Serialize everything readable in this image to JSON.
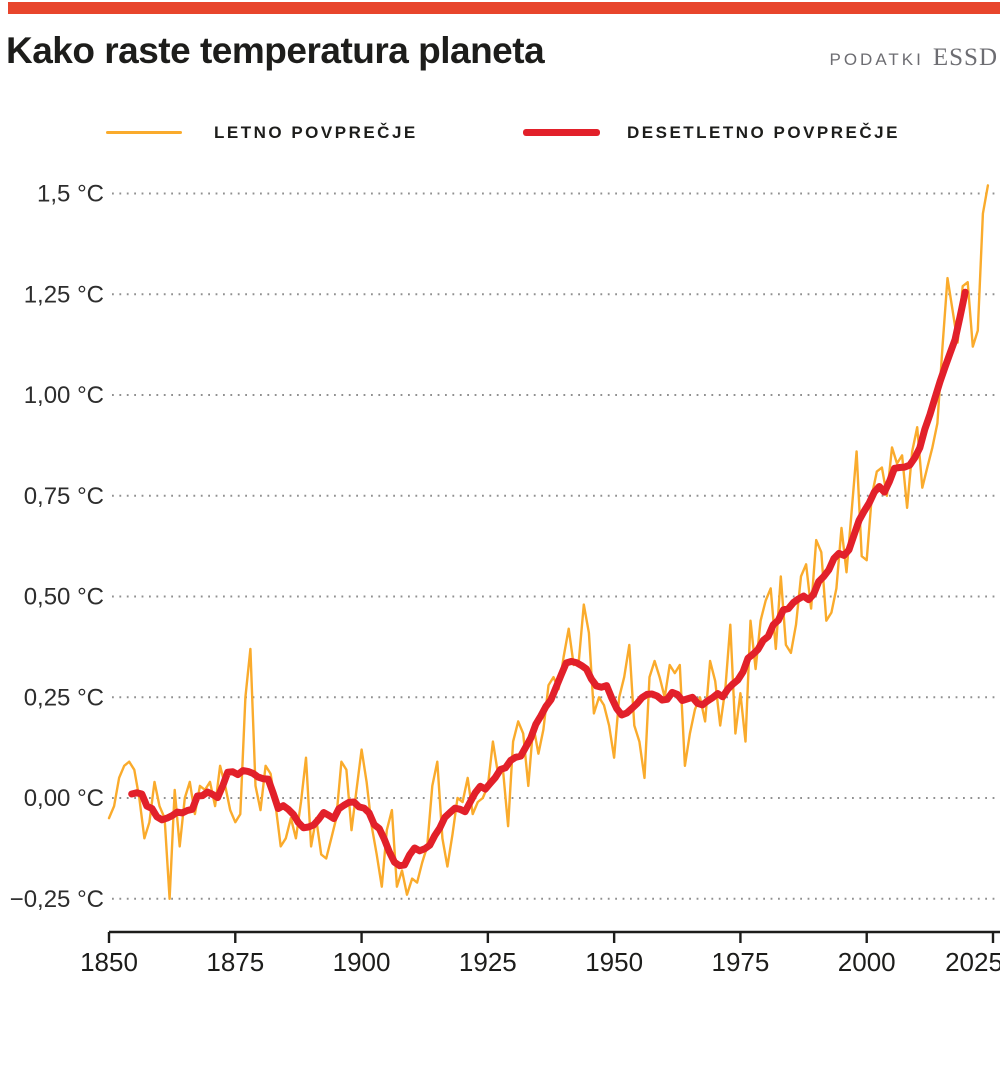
{
  "page": {
    "background": "#ffffff",
    "accent_bar_color": "#e8452c"
  },
  "header": {
    "title": "Kako raste temperatura planeta",
    "source_label": "PODATKI",
    "source_name": "ESSD"
  },
  "legend": [
    {
      "label": "LETNO POVPREČJE",
      "color": "#faab2c",
      "thickness": 3
    },
    {
      "label": "DESETLETNO POVPREČJE",
      "color": "#e2202a",
      "thickness": 7
    }
  ],
  "chart_data": {
    "type": "line",
    "title": "Kako raste temperatura planeta",
    "unit": "°C",
    "xlabel": "",
    "ylabel": "",
    "xlim": [
      1850,
      2025
    ],
    "ylim": [
      -0.35,
      1.58
    ],
    "grid": "dotted-horizontal",
    "legend_position": "top",
    "xticks": [
      1850,
      1875,
      1900,
      1925,
      1950,
      1975,
      2000,
      2025
    ],
    "yticks": [
      {
        "value": 1.5,
        "label": "1,5 °C"
      },
      {
        "value": 1.25,
        "label": "1,25 °C"
      },
      {
        "value": 1.0,
        "label": "1,00 °C"
      },
      {
        "value": 0.75,
        "label": "0,75 °C"
      },
      {
        "value": 0.5,
        "label": "0,50 °C"
      },
      {
        "value": 0.25,
        "label": "0,25 °C"
      },
      {
        "value": 0.0,
        "label": "0,00 °C"
      },
      {
        "value": -0.25,
        "label": "−0,25 °C"
      }
    ],
    "series": [
      {
        "name": "LETNO POVPREČJE",
        "color": "#faab2c",
        "stroke_width": 2.4,
        "start_year": 1850,
        "values": [
          -0.05,
          -0.02,
          0.05,
          0.08,
          0.09,
          0.07,
          0.0,
          -0.1,
          -0.06,
          0.04,
          -0.02,
          -0.05,
          -0.25,
          0.02,
          -0.12,
          0.0,
          0.04,
          -0.04,
          0.03,
          0.02,
          0.04,
          -0.02,
          0.08,
          0.03,
          -0.03,
          -0.06,
          -0.04,
          0.25,
          0.37,
          0.03,
          -0.03,
          0.08,
          0.06,
          -0.02,
          -0.12,
          -0.1,
          -0.05,
          -0.1,
          -0.01,
          0.1,
          -0.12,
          -0.05,
          -0.14,
          -0.15,
          -0.1,
          -0.05,
          0.09,
          0.07,
          -0.08,
          0.02,
          0.12,
          0.04,
          -0.07,
          -0.14,
          -0.22,
          -0.08,
          -0.03,
          -0.22,
          -0.18,
          -0.24,
          -0.2,
          -0.21,
          -0.16,
          -0.12,
          0.03,
          0.09,
          -0.1,
          -0.17,
          -0.09,
          0.0,
          -0.01,
          0.05,
          -0.04,
          -0.01,
          0.0,
          0.03,
          0.14,
          0.06,
          0.07,
          -0.07,
          0.14,
          0.19,
          0.16,
          0.03,
          0.18,
          0.11,
          0.17,
          0.28,
          0.3,
          0.27,
          0.35,
          0.42,
          0.33,
          0.34,
          0.48,
          0.41,
          0.21,
          0.25,
          0.23,
          0.18,
          0.1,
          0.25,
          0.3,
          0.38,
          0.18,
          0.14,
          0.05,
          0.3,
          0.34,
          0.3,
          0.25,
          0.33,
          0.31,
          0.33,
          0.08,
          0.16,
          0.22,
          0.25,
          0.19,
          0.34,
          0.29,
          0.18,
          0.27,
          0.43,
          0.16,
          0.26,
          0.14,
          0.44,
          0.32,
          0.44,
          0.49,
          0.52,
          0.37,
          0.55,
          0.38,
          0.36,
          0.43,
          0.55,
          0.58,
          0.47,
          0.64,
          0.61,
          0.44,
          0.46,
          0.52,
          0.67,
          0.56,
          0.71,
          0.86,
          0.6,
          0.59,
          0.75,
          0.81,
          0.82,
          0.75,
          0.87,
          0.83,
          0.85,
          0.72,
          0.86,
          0.92,
          0.77,
          0.82,
          0.87,
          0.93,
          1.12,
          1.29,
          1.21,
          1.13,
          1.27,
          1.28,
          1.12,
          1.16,
          1.45,
          1.52
        ]
      },
      {
        "name": "DESETLETNO POVPREČJE",
        "color": "#e2202a",
        "stroke_width": 7,
        "derived": "centered 10-year rolling mean of annual series",
        "window_years": 10
      }
    ]
  }
}
